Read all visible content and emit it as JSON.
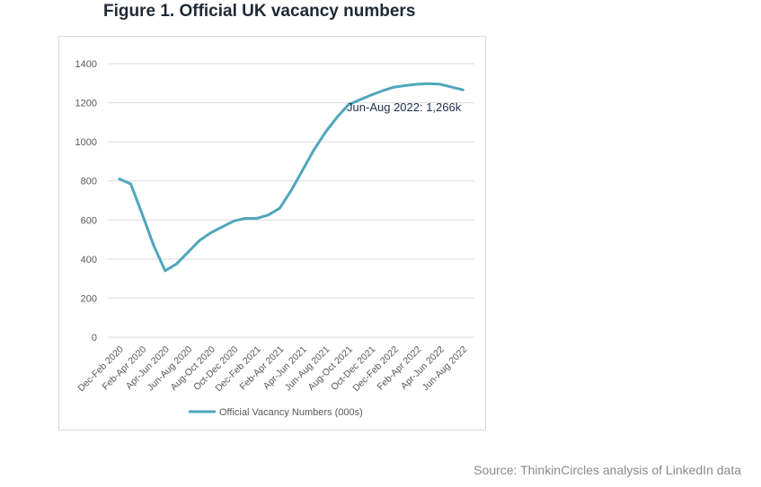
{
  "figure": {
    "title": "Figure 1. Official UK vacancy numbers",
    "source": "Source: ThinkinCircles analysis of LinkedIn data"
  },
  "chart_data": {
    "type": "line",
    "title": "",
    "xlabel": "",
    "ylabel": "",
    "ylim": [
      0,
      1400
    ],
    "yticks": [
      0,
      200,
      400,
      600,
      800,
      1000,
      1200,
      1400
    ],
    "grid": true,
    "legend_position": "bottom",
    "colors": {
      "series": "#4fa6bb",
      "grid": "#d9d9d9",
      "tick_text": "#595959",
      "annotation": "#1f2d4d"
    },
    "x_labels": [
      "Dec-Feb 2020",
      "Feb-Apr 2020",
      "Apr-Jun 2020",
      "Jun-Aug 2020",
      "Aug-Oct 2020",
      "Oct-Dec 2020",
      "Dec-Feb 2021",
      "Feb-Apr 2021",
      "Apr-Jun 2021",
      "Jun-Aug 2021",
      "Aug-Oct 2021",
      "Oct-Dec 2021",
      "Dec-Feb 2022",
      "Feb-Apr 2022",
      "Apr-Jun 2022",
      "Jun-Aug 2022"
    ],
    "series": [
      {
        "name": "Official Vacancy Numbers (000s)",
        "values": [
          810,
          785,
          630,
          470,
          340,
          375,
          435,
          495,
          535,
          565,
          595,
          608,
          608,
          625,
          660,
          750,
          855,
          960,
          1050,
          1125,
          1190,
          1215,
          1240,
          1262,
          1280,
          1288,
          1295,
          1298,
          1295,
          1280,
          1266
        ]
      }
    ],
    "annotation": {
      "text": "Jun-Aug 2022: 1,266k"
    }
  }
}
